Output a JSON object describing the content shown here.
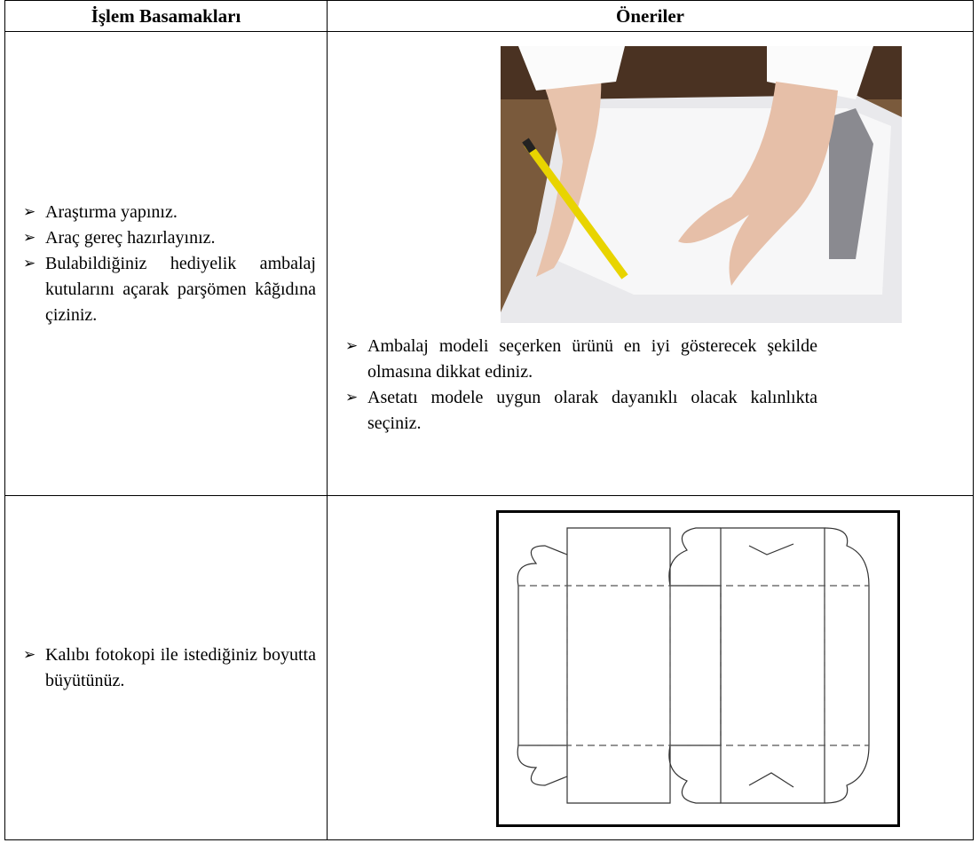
{
  "table": {
    "header": [
      "İşlem Basamakları",
      "Öneriler"
    ],
    "rows": [
      {
        "steps": [
          "Araştırma yapınız.",
          "Araç gereç hazırlayınız.",
          "Bulabildiğiniz hediyelik ambalaj kutularını açarak parşömen kâğıdına çiziniz."
        ],
        "tips": [
          "Ambalaj modeli seçerken ürünü en iyi gösterecek şekilde olmasına dikkat ediniz.",
          "Asetatı modele uygun olarak dayanıklı olacak kalınlıkta seçiniz."
        ]
      },
      {
        "steps": [
          "Kalıbı fotokopi ile istediğiniz boyutta büyütünüz."
        ],
        "tips": []
      }
    ]
  }
}
